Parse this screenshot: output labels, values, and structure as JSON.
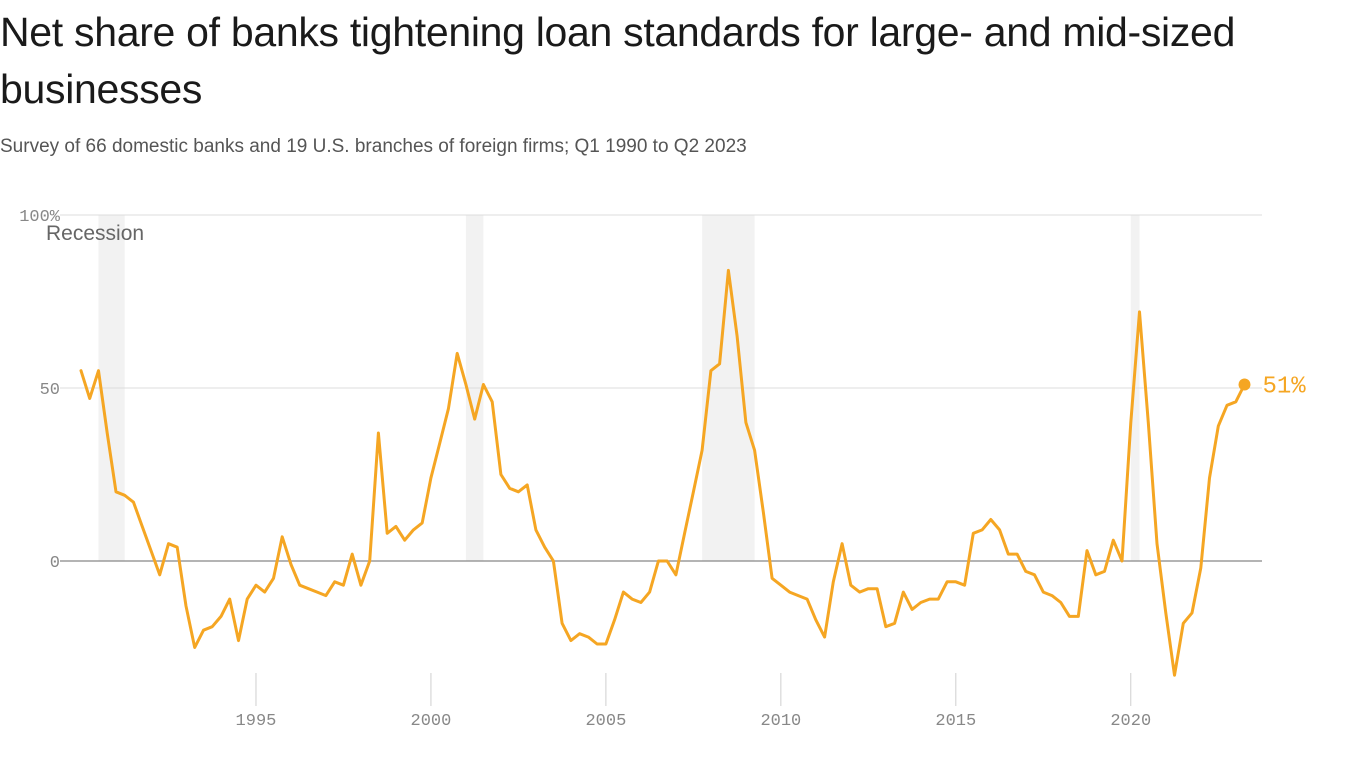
{
  "chart_data": {
    "type": "line",
    "title": "Net share of banks tightening loan standards for large- and mid-sized businesses",
    "subtitle": "Survey of 66 domestic banks and 19 U.S. branches of foreign firms; Q1 1990 to Q2 2023",
    "ylim": [
      -35,
      100
    ],
    "xlim": [
      1990,
      2023.75
    ],
    "y_ticks": [
      {
        "value": 100,
        "label": "100%"
      },
      {
        "value": 50,
        "label": "50"
      },
      {
        "value": 0,
        "label": "0"
      }
    ],
    "x_ticks": [
      {
        "value": 1995,
        "label": "1995"
      },
      {
        "value": 2000,
        "label": "2000"
      },
      {
        "value": 2005,
        "label": "2005"
      },
      {
        "value": 2010,
        "label": "2010"
      },
      {
        "value": 2015,
        "label": "2015"
      },
      {
        "value": 2020,
        "label": "2020"
      }
    ],
    "recession_label": "Recession",
    "recessions": [
      [
        1990.5,
        1991.25
      ],
      [
        2001.0,
        2001.5
      ],
      [
        2007.75,
        2009.25
      ],
      [
        2020.0,
        2020.25
      ]
    ],
    "series": [
      {
        "name": "Net share of banks tightening",
        "color": "#f5a623",
        "end_label": "51%",
        "x_start": 1990.0,
        "x_step": 0.25,
        "values": [
          55,
          47,
          55,
          37,
          20,
          19,
          17,
          10,
          3,
          -4,
          5,
          4,
          -13,
          -25,
          -20,
          -19,
          -16,
          -11,
          -23,
          -11,
          -7,
          -9,
          -5,
          7,
          -1,
          -7,
          -8,
          -9,
          -10,
          -6,
          -7,
          2,
          -7,
          0,
          37,
          8,
          10,
          6,
          9,
          11,
          24,
          34,
          44,
          60,
          51,
          41,
          51,
          46,
          25,
          21,
          20,
          22,
          9,
          4,
          0,
          -18,
          -23,
          -21,
          -22,
          -24,
          -24,
          -17,
          -9,
          -11,
          -12,
          -9,
          0,
          0,
          -4,
          8,
          20,
          32,
          55,
          57,
          84,
          65,
          40,
          32,
          14,
          -5,
          -7,
          -9,
          -10,
          -11,
          -17,
          -22,
          -6,
          5,
          -7,
          -9,
          -8,
          -8,
          -19,
          -18,
          -9,
          -14,
          -12,
          -11,
          -11,
          -6,
          -6,
          -7,
          8,
          9,
          12,
          9,
          2,
          2,
          -3,
          -4,
          -9,
          -10,
          -12,
          -16,
          -16,
          3,
          -4,
          -3,
          6,
          0,
          40,
          72,
          40,
          5,
          -15,
          -33,
          -18,
          -15,
          -2,
          24,
          39,
          45,
          46,
          51
        ]
      }
    ]
  }
}
